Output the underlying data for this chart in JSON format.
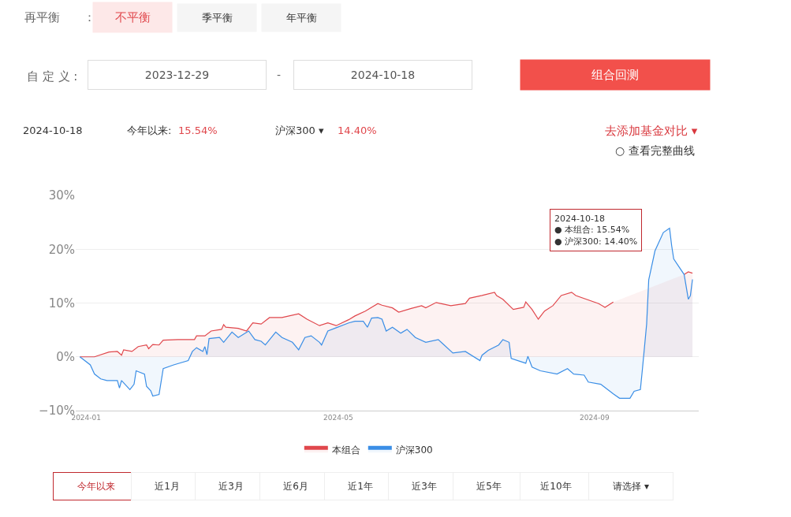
{
  "chart_data": {
    "type": "area",
    "ylim": [
      -10,
      30
    ],
    "yticks": [
      {
        "value": -10,
        "label": "−10%"
      },
      {
        "value": 0,
        "label": "0%"
      },
      {
        "value": 10,
        "label": "10%"
      },
      {
        "value": 20,
        "label": "20%"
      },
      {
        "value": 30,
        "label": "30%"
      }
    ],
    "xlim": [
      "2023-12-27",
      "2024-10-21"
    ],
    "xticks": [
      {
        "value": "2024-01-01",
        "label": "2024-01"
      },
      {
        "value": "2024-05-01",
        "label": "2024-05"
      },
      {
        "value": "2024-09-01",
        "label": "2024-09"
      }
    ],
    "grid": "y",
    "legend": "bottom",
    "series": [
      {
        "name": "本组合",
        "color": "#e0474c",
        "x": [
          "2023-12-29",
          "2024-01-05",
          "2024-01-12",
          "2024-01-16",
          "2024-01-18",
          "2024-01-19",
          "2024-01-23",
          "2024-01-26",
          "2024-01-30",
          "2024-01-31",
          "2024-02-02",
          "2024-02-05",
          "2024-02-07",
          "2024-02-14",
          "2024-02-22",
          "2024-02-23",
          "2024-02-27",
          "2024-03-01",
          "2024-03-06",
          "2024-03-07",
          "2024-03-08",
          "2024-03-14",
          "2024-03-18",
          "2024-03-21",
          "2024-03-25",
          "2024-03-29",
          "2024-04-04",
          "2024-04-12",
          "2024-04-16",
          "2024-04-22",
          "2024-04-26",
          "2024-04-30",
          "2024-05-06",
          "2024-05-09",
          "2024-05-14",
          "2024-05-20",
          "2024-05-22",
          "2024-05-27",
          "2024-05-30",
          "2024-06-05",
          "2024-06-10",
          "2024-06-12",
          "2024-06-17",
          "2024-06-24",
          "2024-07-01",
          "2024-07-03",
          "2024-07-09",
          "2024-07-15",
          "2024-07-16",
          "2024-07-19",
          "2024-07-24",
          "2024-07-29",
          "2024-07-30",
          "2024-08-02",
          "2024-08-05",
          "2024-08-08",
          "2024-08-12",
          "2024-08-16",
          "2024-08-21",
          "2024-08-23",
          "2024-09-03",
          "2024-09-06",
          "2024-09-10",
          "2024-09-12",
          "2024-10-14",
          "2024-10-16",
          "2024-10-18"
        ],
        "values": [
          0,
          0,
          0.9,
          1.0,
          0.3,
          1.3,
          1.0,
          1.9,
          2.2,
          1.5,
          2.3,
          2.2,
          3.1,
          3.2,
          3.2,
          3.9,
          3.9,
          4.8,
          5.1,
          6.0,
          5.5,
          5.3,
          4.8,
          6.3,
          6.1,
          7.3,
          7.3,
          8.0,
          7.0,
          5.8,
          6.3,
          5.8,
          6.9,
          7.6,
          8.5,
          9.9,
          9.6,
          9.1,
          8.3,
          9.0,
          9.5,
          9.1,
          10.1,
          9.5,
          9.9,
          10.9,
          11.4,
          12.0,
          11.4,
          10.7,
          8.8,
          9.2,
          10.2,
          8.8,
          7.0,
          8.5,
          9.5,
          11.4,
          12.0,
          11.4,
          9.9,
          9.2,
          10.2,
          null,
          15.3,
          15.8,
          15.54
        ]
      },
      {
        "name": "沪深300",
        "color": "#3a8ee6",
        "x": [
          "2023-12-29",
          "2024-01-03",
          "2024-01-05",
          "2024-01-08",
          "2024-01-11",
          "2024-01-16",
          "2024-01-17",
          "2024-01-18",
          "2024-01-22",
          "2024-01-24",
          "2024-01-25",
          "2024-01-29",
          "2024-01-30",
          "2024-02-01",
          "2024-02-02",
          "2024-02-05",
          "2024-02-07",
          "2024-02-12",
          "2024-02-19",
          "2024-02-21",
          "2024-02-23",
          "2024-02-26",
          "2024-02-27",
          "2024-02-28",
          "2024-02-29",
          "2024-03-05",
          "2024-03-07",
          "2024-03-11",
          "2024-03-14",
          "2024-03-19",
          "2024-03-22",
          "2024-03-25",
          "2024-03-27",
          "2024-04-01",
          "2024-04-04",
          "2024-04-09",
          "2024-04-12",
          "2024-04-15",
          "2024-04-18",
          "2024-04-22",
          "2024-04-23",
          "2024-04-26",
          "2024-04-30",
          "2024-05-06",
          "2024-05-09",
          "2024-05-13",
          "2024-05-15",
          "2024-05-17",
          "2024-05-20",
          "2024-05-22",
          "2024-05-24",
          "2024-05-27",
          "2024-05-31",
          "2024-06-03",
          "2024-06-07",
          "2024-06-12",
          "2024-06-18",
          "2024-06-20",
          "2024-06-25",
          "2024-07-01",
          "2024-07-08",
          "2024-07-09",
          "2024-07-12",
          "2024-07-17",
          "2024-07-19",
          "2024-07-22",
          "2024-07-23",
          "2024-07-30",
          "2024-07-31",
          "2024-08-02",
          "2024-08-06",
          "2024-08-14",
          "2024-08-19",
          "2024-08-22",
          "2024-08-27",
          "2024-08-29",
          "2024-09-04",
          "2024-09-10",
          "2024-09-13",
          "2024-09-18",
          "2024-09-20",
          "2024-09-23",
          "2024-09-24",
          "2024-09-26",
          "2024-09-27",
          "2024-09-30",
          "2024-10-04",
          "2024-10-07",
          "2024-10-08",
          "2024-10-09",
          "2024-10-14",
          "2024-10-16",
          "2024-10-17",
          "2024-10-18"
        ],
        "values": [
          0,
          -1.5,
          -3.2,
          -4.1,
          -4.4,
          -4.4,
          -5.8,
          -4.4,
          -6.1,
          -5.1,
          -2.6,
          -3.2,
          -5.5,
          -6.3,
          -7.3,
          -7.0,
          -2.2,
          -1.5,
          -0.7,
          1.0,
          1.7,
          1.0,
          1.9,
          0.4,
          3.4,
          3.6,
          2.7,
          4.6,
          3.6,
          4.8,
          3.2,
          2.9,
          2.2,
          4.6,
          3.6,
          2.7,
          1.3,
          3.6,
          3.9,
          2.7,
          2.2,
          4.8,
          5.4,
          6.3,
          6.6,
          6.6,
          5.5,
          7.2,
          7.3,
          7.0,
          4.8,
          5.5,
          4.4,
          5.1,
          3.6,
          2.7,
          3.2,
          2.5,
          0.7,
          1.0,
          -0.7,
          0.3,
          1.2,
          2.2,
          3.2,
          2.7,
          -0.3,
          -1.2,
          0.1,
          -1.9,
          -2.6,
          -3.2,
          -2.2,
          -3.2,
          -3.4,
          -4.7,
          -5.1,
          -6.9,
          -7.7,
          -7.7,
          -6.4,
          -6.1,
          -2.2,
          6.1,
          14.3,
          19.7,
          23.1,
          23.9,
          20.7,
          18.2,
          15.3,
          10.7,
          11.4,
          14.4
        ]
      }
    ],
    "annotations": [
      "再平衡",
      "：",
      "不平衡",
      "季平衡",
      "年平衡",
      "自 定 义 :",
      "2023-12-29",
      "-",
      "2024-10-18",
      "组合回测",
      "2024-10-18",
      "今年以来:",
      "15.54%",
      "沪深300 ▾",
      "14.40%",
      "去添加基金对比 ▾",
      "○ 查看完整曲线",
      "今年以来",
      "近1月",
      "近3月",
      "近6月",
      "近1年",
      "近3年",
      "近5年",
      "近10年",
      "请选择 ▾",
      "2024-10-18\n● 本组合: 15.54%\n● 沪深300: 14.40%"
    ]
  }
}
